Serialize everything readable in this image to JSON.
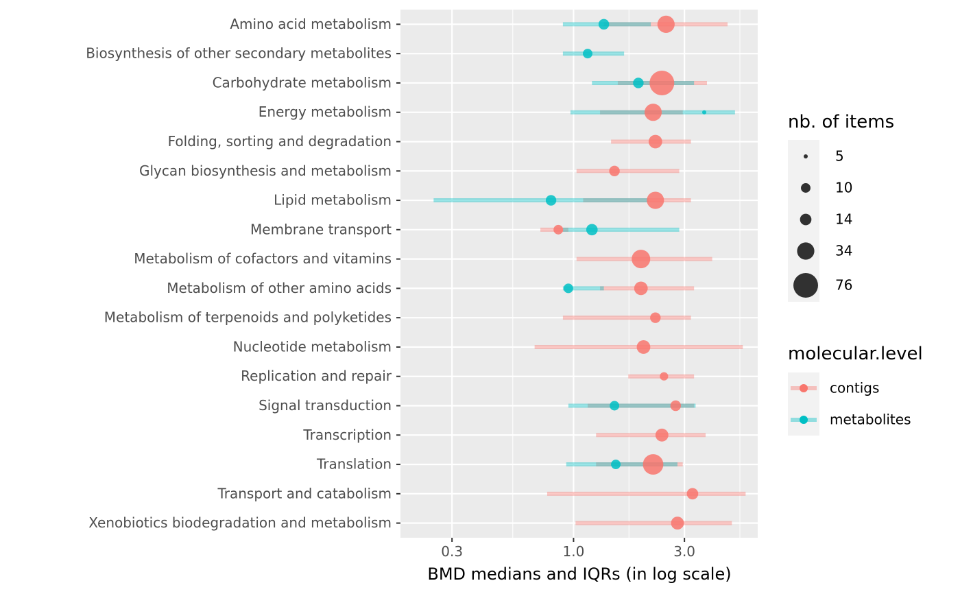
{
  "chart_data": {
    "type": "scatter",
    "xlabel": "BMD medians and IQRs (in log scale)",
    "ylabel": "",
    "xscale": "log",
    "xlim": [
      0.18,
      6.2
    ],
    "xticks": [
      0.3,
      1.0,
      3.0
    ],
    "xtick_labels": [
      "0.3",
      "1.0",
      "3.0"
    ],
    "grid": true,
    "legend_placement": "right",
    "categories": [
      "Amino acid metabolism",
      "Biosynthesis of other secondary metabolites",
      "Carbohydrate metabolism",
      "Energy metabolism",
      "Folding, sorting and degradation",
      "Glycan biosynthesis and metabolism",
      "Lipid metabolism",
      "Membrane transport",
      "Metabolism of cofactors and vitamins",
      "Metabolism of other amino acids",
      "Metabolism of terpenoids and polyketides",
      "Nucleotide metabolism",
      "Replication and repair",
      "Signal transduction",
      "Transcription",
      "Translation",
      "Transport and catabolism",
      "Xenobiotics biodegradation and metabolism"
    ],
    "series": [
      {
        "name": "contigs",
        "color": "#F8766D",
        "points": [
          {
            "category": "Amino acid metabolism",
            "median": 2.5,
            "q1": 1.35,
            "q3": 4.6,
            "n": 34
          },
          {
            "category": "Carbohydrate metabolism",
            "median": 2.4,
            "q1": 1.55,
            "q3": 3.75,
            "n": 76
          },
          {
            "category": "Energy metabolism",
            "median": 2.2,
            "q1": 1.3,
            "q3": 2.95,
            "n": 34
          },
          {
            "category": "Folding, sorting and degradation",
            "median": 2.25,
            "q1": 1.45,
            "q3": 3.2,
            "n": 20
          },
          {
            "category": "Glycan biosynthesis and metabolism",
            "median": 1.5,
            "q1": 1.03,
            "q3": 2.85,
            "n": 12
          },
          {
            "category": "Lipid metabolism",
            "median": 2.25,
            "q1": 1.1,
            "q3": 3.2,
            "n": 34
          },
          {
            "category": "Membrane transport",
            "median": 0.86,
            "q1": 0.72,
            "q3": 0.95,
            "n": 10
          },
          {
            "category": "Metabolism of cofactors and vitamins",
            "median": 1.95,
            "q1": 1.03,
            "q3": 3.95,
            "n": 40
          },
          {
            "category": "Metabolism of other amino acids",
            "median": 1.95,
            "q1": 1.3,
            "q3": 3.3,
            "n": 20
          },
          {
            "category": "Metabolism of terpenoids and polyketides",
            "median": 2.25,
            "q1": 0.9,
            "q3": 3.2,
            "n": 12
          },
          {
            "category": "Nucleotide metabolism",
            "median": 2.0,
            "q1": 0.68,
            "q3": 5.35,
            "n": 20
          },
          {
            "category": "Replication and repair",
            "median": 2.45,
            "q1": 1.72,
            "q3": 3.3,
            "n": 8
          },
          {
            "category": "Signal transduction",
            "median": 2.75,
            "q1": 1.15,
            "q3": 3.3,
            "n": 12
          },
          {
            "category": "Transcription",
            "median": 2.4,
            "q1": 1.25,
            "q3": 3.7,
            "n": 18
          },
          {
            "category": "Translation",
            "median": 2.2,
            "q1": 1.25,
            "q3": 2.95,
            "n": 50
          },
          {
            "category": "Transport and catabolism",
            "median": 3.25,
            "q1": 0.77,
            "q3": 5.5,
            "n": 14
          },
          {
            "category": "Xenobiotics biodegradation and metabolism",
            "median": 2.8,
            "q1": 1.02,
            "q3": 4.8,
            "n": 18
          }
        ]
      },
      {
        "name": "metabolites",
        "color": "#00BFC4",
        "points": [
          {
            "category": "Amino acid metabolism",
            "median": 1.35,
            "q1": 0.9,
            "q3": 2.15,
            "n": 12
          },
          {
            "category": "Biosynthesis of other secondary metabolites",
            "median": 1.15,
            "q1": 0.9,
            "q3": 1.65,
            "n": 10
          },
          {
            "category": "Carbohydrate metabolism",
            "median": 1.9,
            "q1": 1.2,
            "q3": 3.3,
            "n": 12
          },
          {
            "category": "Energy metabolism",
            "median": 3.65,
            "q1": 0.97,
            "q3": 4.95,
            "n": 5
          },
          {
            "category": "Lipid metabolism",
            "median": 0.8,
            "q1": 0.25,
            "q3": 2.1,
            "n": 12
          },
          {
            "category": "Membrane transport",
            "median": 1.2,
            "q1": 0.9,
            "q3": 2.85,
            "n": 14
          },
          {
            "category": "Metabolism of other amino acids",
            "median": 0.95,
            "q1": 0.9,
            "q3": 1.35,
            "n": 10
          },
          {
            "category": "Signal transduction",
            "median": 1.5,
            "q1": 0.95,
            "q3": 3.35,
            "n": 10
          },
          {
            "category": "Translation",
            "median": 1.52,
            "q1": 0.93,
            "q3": 2.8,
            "n": 10
          }
        ]
      }
    ],
    "size_legend": {
      "title": "nb. of items",
      "breaks": [
        5,
        10,
        14,
        34,
        76
      ],
      "labels": [
        "5",
        "10",
        "14",
        "34",
        "76"
      ]
    },
    "color_legend": {
      "title": "molecular.level",
      "entries": [
        {
          "label": "contigs",
          "color": "#F8766D"
        },
        {
          "label": "metabolites",
          "color": "#00BFC4"
        }
      ]
    }
  }
}
